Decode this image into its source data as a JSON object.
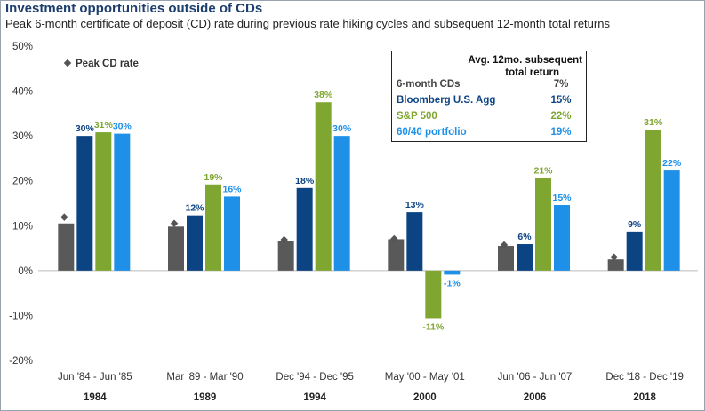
{
  "title": "Investment opportunities outside of CDs",
  "subtitle": "Peak 6-month certificate of deposit (CD) rate during previous rate hiking cycles and subsequent 12-month total returns",
  "colors": {
    "peak_marker": "#555555",
    "cds": "#595959",
    "agg": "#0c4383",
    "sp500": "#7fa631",
    "portfolio": "#1e90e8"
  },
  "legend": {
    "peak_label": "Peak CD rate",
    "table_header_line1": "Avg. 12mo. subsequent",
    "table_header_line2": "total return",
    "rows": [
      {
        "name": "6-month CDs",
        "value": "7%"
      },
      {
        "name": "Bloomberg U.S. Agg",
        "value": "15%"
      },
      {
        "name": "S&P 500",
        "value": "22%"
      },
      {
        "name": "60/40 portfolio",
        "value": "19%"
      }
    ]
  },
  "chart_data": {
    "type": "bar",
    "categories": [
      "Jun '84 - Jun '85",
      "Mar '89 - Mar '90",
      "Dec '94 - Dec '95",
      "May '00 - May '01",
      "Jun '06 - Jun '07",
      "Dec '18 - Dec '19"
    ],
    "category_years": [
      "1984",
      "1989",
      "1994",
      "2000",
      "2006",
      "2018"
    ],
    "ylim": [
      -20,
      50
    ],
    "yticks": [
      -20,
      -10,
      0,
      10,
      20,
      30,
      40,
      50
    ],
    "ytick_labels": [
      "-20%",
      "-10%",
      "0%",
      "10%",
      "20%",
      "30%",
      "40%",
      "50%"
    ],
    "series": [
      {
        "name": "6-month CDs",
        "values": [
          10.5,
          9.8,
          6.5,
          7.0,
          5.5,
          2.5
        ],
        "labels": [
          "",
          "",
          "",
          "",
          "",
          ""
        ]
      },
      {
        "name": "Bloomberg U.S. Agg",
        "values": [
          30,
          12.3,
          18.4,
          13.0,
          5.9,
          8.7
        ],
        "labels": [
          "30%",
          "12%",
          "18%",
          "13%",
          "6%",
          "9%"
        ]
      },
      {
        "name": "S&P 500",
        "values": [
          30.8,
          19.2,
          37.5,
          -10.6,
          20.6,
          31.4
        ],
        "labels": [
          "31%",
          "19%",
          "38%",
          "-11%",
          "21%",
          "31%"
        ]
      },
      {
        "name": "60/40 portfolio",
        "values": [
          30.5,
          16.5,
          30.0,
          -0.9,
          14.6,
          22.3
        ],
        "labels": [
          "30%",
          "16%",
          "30%",
          "-1%",
          "15%",
          "22%"
        ]
      }
    ],
    "peak_cd_rate": [
      11.9,
      10.5,
      6.9,
      7.1,
      5.7,
      3.0
    ],
    "grid": false
  }
}
